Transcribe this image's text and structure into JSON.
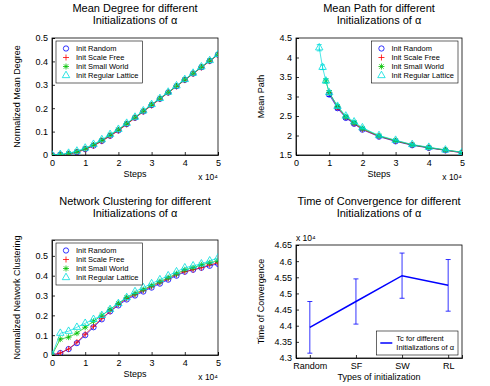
{
  "chart_data": [
    {
      "type": "line",
      "title": [
        "Mean Degree for different",
        "Initializations of α"
      ],
      "x_label": "Steps",
      "y_label": "Normalized Mean Degree",
      "annotations": [
        "x 10⁴"
      ],
      "x": [
        0,
        0.25,
        0.5,
        0.75,
        1,
        1.25,
        1.5,
        1.75,
        2,
        2.25,
        2.5,
        2.75,
        3,
        3.25,
        3.5,
        3.75,
        4,
        4.25,
        4.5,
        4.75,
        5
      ],
      "series": [
        {
          "name": "Init Random",
          "color": "#0000ff",
          "marker": "circle",
          "values": [
            0,
            0.001,
            0.004,
            0.012,
            0.025,
            0.04,
            0.06,
            0.082,
            0.105,
            0.132,
            0.159,
            0.186,
            0.213,
            0.24,
            0.267,
            0.294,
            0.321,
            0.348,
            0.375,
            0.402,
            0.429
          ]
        },
        {
          "name": "Init Scale Free",
          "color": "#ff0000",
          "marker": "plus",
          "values": [
            0,
            0.001,
            0.004,
            0.011,
            0.024,
            0.039,
            0.059,
            0.081,
            0.104,
            0.131,
            0.158,
            0.185,
            0.212,
            0.239,
            0.266,
            0.293,
            0.32,
            0.347,
            0.374,
            0.401,
            0.428
          ]
        },
        {
          "name": "Init Small World",
          "color": "#00c000",
          "marker": "star",
          "values": [
            0,
            0.002,
            0.006,
            0.014,
            0.027,
            0.043,
            0.063,
            0.085,
            0.108,
            0.134,
            0.161,
            0.188,
            0.215,
            0.242,
            0.268,
            0.295,
            0.322,
            0.349,
            0.376,
            0.403,
            0.43
          ]
        },
        {
          "name": "Init Regular Lattice",
          "color": "#00dddd",
          "marker": "triangle",
          "values": [
            0,
            0.003,
            0.008,
            0.017,
            0.03,
            0.046,
            0.066,
            0.088,
            0.11,
            0.136,
            0.162,
            0.189,
            0.216,
            0.242,
            0.269,
            0.296,
            0.323,
            0.35,
            0.377,
            0.404,
            0.43
          ]
        }
      ],
      "xlim": [
        0,
        5
      ],
      "xticks": [
        0,
        1,
        2,
        3,
        4,
        5
      ],
      "ylim": [
        0,
        0.5
      ],
      "yticks": [
        0,
        0.1,
        0.2,
        0.3,
        0.4,
        0.5
      ],
      "grid": false,
      "legend": "top-left"
    },
    {
      "type": "line",
      "title": [
        "Mean Path for different",
        "Initializations of α"
      ],
      "x_label": "Steps",
      "y_label": "Mean Path",
      "annotations": [
        "x 10⁴"
      ],
      "x": [
        0.7,
        0.8,
        0.9,
        1,
        1.25,
        1.5,
        1.75,
        2,
        2.5,
        3,
        3.5,
        4,
        4.5,
        5
      ],
      "series": [
        {
          "name": "Init Random",
          "color": "#0000ff",
          "marker": "circle",
          "values": [
            null,
            null,
            null,
            3.05,
            2.7,
            2.45,
            2.3,
            2.15,
            1.97,
            1.85,
            1.75,
            1.68,
            1.62,
            1.56
          ],
          "errors": [
            null,
            null,
            null,
            0.05,
            0.04,
            0.03,
            0.03,
            0.02,
            0.02,
            0.02,
            0.02,
            0.02,
            0.02,
            0.02
          ]
        },
        {
          "name": "Init Scale Free",
          "color": "#ff0000",
          "marker": "plus",
          "values": [
            null,
            null,
            null,
            3.1,
            2.72,
            2.47,
            2.31,
            2.16,
            1.98,
            1.86,
            1.76,
            1.69,
            1.62,
            1.56
          ],
          "errors": [
            null,
            null,
            null,
            0.05,
            0.04,
            0.03,
            0.03,
            0.02,
            0.02,
            0.02,
            0.02,
            0.02,
            0.02,
            0.02
          ]
        },
        {
          "name": "Init Small World",
          "color": "#00c000",
          "marker": "star",
          "values": [
            null,
            null,
            3.4,
            3.1,
            2.75,
            2.48,
            2.33,
            2.18,
            1.99,
            1.87,
            1.76,
            1.69,
            1.63,
            1.57
          ],
          "errors": [
            null,
            null,
            0.05,
            0.05,
            0.04,
            0.03,
            0.03,
            0.02,
            0.02,
            0.02,
            0.02,
            0.02,
            0.02,
            0.02
          ]
        },
        {
          "name": "Init Regular Lattice",
          "color": "#00dddd",
          "marker": "triangle",
          "values": [
            4.25,
            3.75,
            3.4,
            3.1,
            2.75,
            2.5,
            2.35,
            2.2,
            2.0,
            1.88,
            1.77,
            1.7,
            1.63,
            1.57
          ],
          "errors": [
            0.08,
            0.06,
            0.05,
            0.05,
            0.04,
            0.03,
            0.03,
            0.02,
            0.02,
            0.02,
            0.02,
            0.02,
            0.02,
            0.02
          ]
        }
      ],
      "xlim": [
        0,
        5
      ],
      "xticks": [
        0,
        1,
        2,
        3,
        4,
        5
      ],
      "ylim": [
        1.5,
        4.5
      ],
      "yticks": [
        1.5,
        2,
        2.5,
        3,
        3.5,
        4,
        4.5
      ],
      "grid": false,
      "legend": "top-right"
    },
    {
      "type": "line",
      "title": [
        "Network Clustering for different",
        "Initializations of α"
      ],
      "x_label": "Steps",
      "y_label": "Normalized Network Clustering",
      "annotations": [
        "x 10⁴"
      ],
      "x": [
        0,
        0.25,
        0.5,
        0.75,
        1,
        1.25,
        1.5,
        1.75,
        2,
        2.25,
        2.5,
        2.75,
        3,
        3.25,
        3.5,
        3.75,
        4,
        4.25,
        4.5,
        4.75,
        5
      ],
      "series": [
        {
          "name": "Init Random",
          "color": "#0000ff",
          "marker": "circle",
          "values": [
            0,
            0.01,
            0.03,
            0.06,
            0.1,
            0.14,
            0.18,
            0.22,
            0.25,
            0.28,
            0.3,
            0.32,
            0.34,
            0.36,
            0.38,
            0.4,
            0.42,
            0.43,
            0.44,
            0.45,
            0.46
          ]
        },
        {
          "name": "Init Scale Free",
          "color": "#ff0000",
          "marker": "plus",
          "values": [
            0,
            0.01,
            0.03,
            0.065,
            0.105,
            0.145,
            0.185,
            0.22,
            0.255,
            0.285,
            0.305,
            0.325,
            0.345,
            0.365,
            0.385,
            0.405,
            0.42,
            0.43,
            0.44,
            0.455,
            0.465
          ]
        },
        {
          "name": "Init Small World",
          "color": "#00c000",
          "marker": "star",
          "values": [
            0,
            0.08,
            0.09,
            0.11,
            0.14,
            0.17,
            0.2,
            0.23,
            0.26,
            0.29,
            0.31,
            0.33,
            0.35,
            0.37,
            0.39,
            0.41,
            0.43,
            0.44,
            0.455,
            0.465,
            0.475
          ]
        },
        {
          "name": "Init Regular Lattice",
          "color": "#00dddd",
          "marker": "triangle",
          "values": [
            0,
            0.11,
            0.12,
            0.14,
            0.16,
            0.18,
            0.2,
            0.23,
            0.26,
            0.29,
            0.32,
            0.34,
            0.36,
            0.38,
            0.4,
            0.42,
            0.44,
            0.45,
            0.46,
            0.475,
            0.49
          ]
        }
      ],
      "xlim": [
        0,
        5
      ],
      "xticks": [
        0,
        1,
        2,
        3,
        4,
        5
      ],
      "ylim": [
        0,
        0.58
      ],
      "yticks": [
        0,
        0.1,
        0.2,
        0.3,
        0.4,
        0.5
      ],
      "grid": false,
      "legend": "top-left"
    },
    {
      "type": "line",
      "title": [
        "Time of Convergence for different",
        "Initializations of α"
      ],
      "x_label": "Types of initialization",
      "y_label": "Time of Convergence",
      "annotations": [
        "x 10⁴"
      ],
      "categories": [
        "Random",
        "SF",
        "SW",
        "RL"
      ],
      "series": [
        {
          "name": [
            "Tc for different",
            "Initializations of α"
          ],
          "color": "#0000ff",
          "values": [
            4.395,
            4.475,
            4.555,
            4.525
          ],
          "errors": [
            0.08,
            0.07,
            0.07,
            0.08
          ]
        }
      ],
      "ylim": [
        4.3,
        4.65
      ],
      "yticks": [
        4.3,
        4.35,
        4.4,
        4.45,
        4.5,
        4.55,
        4.6,
        4.65
      ],
      "grid": false,
      "legend": "bottom-right"
    }
  ]
}
